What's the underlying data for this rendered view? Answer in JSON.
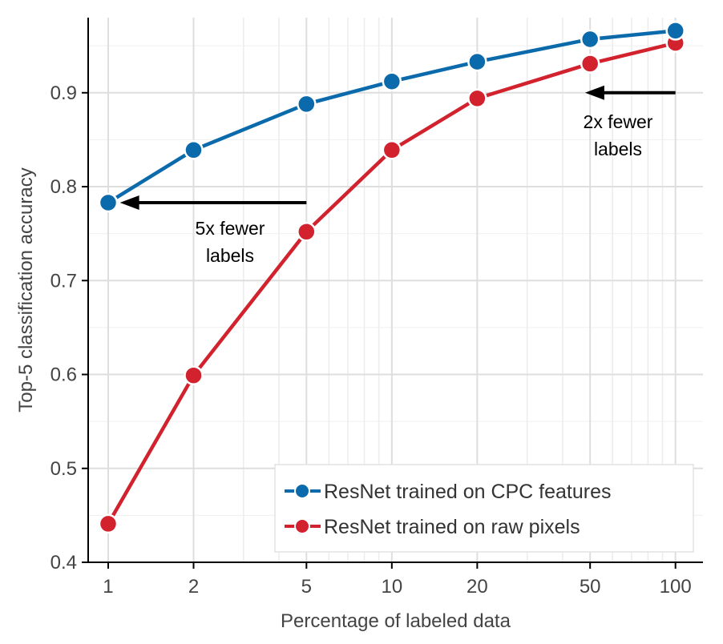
{
  "chart_data": {
    "type": "line",
    "xscale": "log",
    "xlabel": "Percentage of labeled data",
    "ylabel": "Top-5 classification accuracy",
    "xlim": [
      0.85,
      125
    ],
    "ylim": [
      0.4,
      0.98
    ],
    "x": [
      1,
      2,
      5,
      10,
      20,
      50,
      100
    ],
    "xticks": [
      1,
      2,
      5,
      10,
      20,
      50,
      100
    ],
    "xtick_labels": [
      "1",
      "2",
      "5",
      "10",
      "20",
      "50",
      "100"
    ],
    "yticks": [
      0.4,
      0.5,
      0.6,
      0.7,
      0.8,
      0.9
    ],
    "ytick_labels": [
      "0.4",
      "0.5",
      "0.6",
      "0.7",
      "0.8",
      "0.9"
    ],
    "grid": true,
    "legend_position": "bottom-right",
    "series": [
      {
        "name": "ResNet trained on CPC features",
        "color": "#0b6aab",
        "values": [
          0.783,
          0.839,
          0.888,
          0.912,
          0.933,
          0.957,
          0.966
        ]
      },
      {
        "name": "ResNet trained on raw pixels",
        "color": "#d1222e",
        "values": [
          0.441,
          0.599,
          0.752,
          0.839,
          0.894,
          0.931,
          0.953
        ]
      }
    ],
    "annotations": [
      {
        "text": [
          "5x fewer",
          "labels"
        ],
        "arrow_from": {
          "x": 5,
          "y": 0.783
        },
        "arrow_to": {
          "x": 1.1,
          "y": 0.783
        }
      },
      {
        "text": [
          "2x fewer",
          "labels"
        ],
        "arrow_from": {
          "x": 100,
          "y": 0.9
        },
        "arrow_to": {
          "x": 48,
          "y": 0.9
        }
      }
    ]
  }
}
